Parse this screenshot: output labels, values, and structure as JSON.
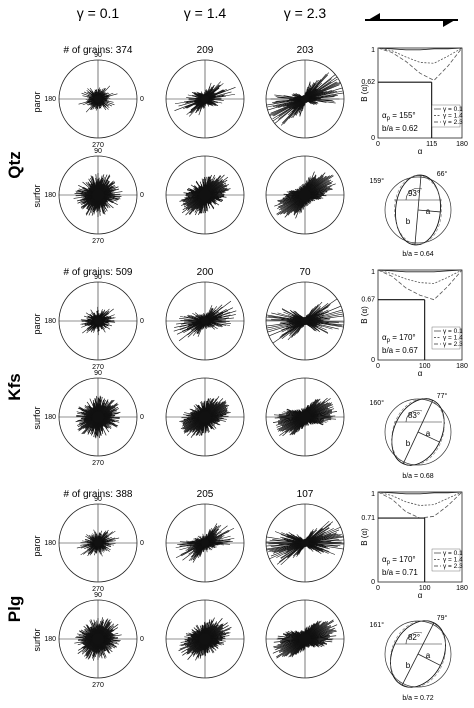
{
  "header": {
    "gammas": [
      "γ = 0.1",
      "γ = 1.4",
      "γ = 2.3"
    ],
    "shear_icon": "dextral-shear-icon"
  },
  "angle_labels": {
    "top": "90",
    "left": "180",
    "right": "0",
    "bottom": "270"
  },
  "row_labels": {
    "paror": "paror",
    "surfor": "surfor"
  },
  "legend": [
    "γ = 0.1",
    "γ = 1.4",
    "γ = 2.3"
  ],
  "axis": {
    "ylabel": "B (α)",
    "xlabel": "α",
    "ytick_top": "1",
    "ytick_bottom": "0",
    "xtick_left": "0",
    "xtick_right": "180"
  },
  "minerals": [
    {
      "name": "Qtz",
      "grain_prefix": "# of grains: ",
      "counts": [
        "374",
        "209",
        "203"
      ],
      "rose_seed": 11,
      "rose_pref": [
        0.1,
        0.35,
        0.7
      ],
      "rose_angle": [
        15,
        20,
        25
      ],
      "chart_data": {
        "type": "line",
        "xlabel": "α",
        "ylabel": "B (α)",
        "xlim": [
          0,
          180
        ],
        "ylim": [
          0,
          1
        ],
        "series": [
          {
            "name": "γ = 0.1",
            "x": [
              0,
              30,
              60,
              90,
              120,
              150,
              180
            ],
            "values": [
              1.0,
              0.99,
              0.98,
              0.98,
              0.99,
              0.99,
              1.0
            ]
          },
          {
            "name": "γ = 1.4",
            "x": [
              0,
              30,
              60,
              90,
              120,
              150,
              180
            ],
            "values": [
              1.0,
              0.97,
              0.9,
              0.84,
              0.83,
              0.91,
              1.0
            ]
          },
          {
            "name": "γ = 2.3",
            "x": [
              0,
              30,
              60,
              90,
              120,
              150,
              180
            ],
            "values": [
              1.0,
              0.95,
              0.85,
              0.72,
              0.64,
              0.8,
              1.0
            ]
          }
        ],
        "b_value_label": "0.62",
        "b_value": 0.62,
        "alpha_marker_label": "115",
        "alpha_marker": 115
      },
      "alpha_text": "α",
      "alpha_sub": "p",
      "alpha_value": " = 155°",
      "ba_text": "b/a = 0.62",
      "ellipse": {
        "left_angle": "159°",
        "top_angle": "66°",
        "center_angle": "93°",
        "a": "a",
        "b": "b",
        "ratio": "b/a = 0.64",
        "tilt": -30,
        "ratio_value": 0.64
      }
    },
    {
      "name": "Kfs",
      "grain_prefix": "# of grains: ",
      "counts": [
        "509",
        "200",
        "70"
      ],
      "rose_seed": 23,
      "rose_pref": [
        0.12,
        0.4,
        0.75
      ],
      "rose_angle": [
        12,
        18,
        8
      ],
      "chart_data": {
        "type": "line",
        "xlabel": "α",
        "ylabel": "B (α)",
        "xlim": [
          0,
          180
        ],
        "ylim": [
          0,
          1
        ],
        "series": [
          {
            "name": "γ = 0.1",
            "x": [
              0,
              30,
              60,
              90,
              120,
              150,
              180
            ],
            "values": [
              1.0,
              0.99,
              0.98,
              0.98,
              0.98,
              0.99,
              1.0
            ]
          },
          {
            "name": "γ = 1.4",
            "x": [
              0,
              30,
              60,
              90,
              120,
              150,
              180
            ],
            "values": [
              1.0,
              0.96,
              0.9,
              0.86,
              0.85,
              0.92,
              1.0
            ]
          },
          {
            "name": "γ = 2.3",
            "x": [
              0,
              30,
              60,
              90,
              120,
              150,
              180
            ],
            "values": [
              1.0,
              0.93,
              0.8,
              0.72,
              0.67,
              0.82,
              1.0
            ]
          }
        ],
        "b_value_label": "0.67",
        "b_value": 0.67,
        "alpha_marker_label": "100",
        "alpha_marker": 100
      },
      "alpha_text": "α",
      "alpha_sub": "p",
      "alpha_value": " = 170°",
      "ba_text": "b/a = 0.67",
      "ellipse": {
        "left_angle": "160°",
        "top_angle": "77°",
        "center_angle": "83°",
        "a": "a",
        "b": "b",
        "ratio": "b/a = 0.68",
        "tilt": -10,
        "ratio_value": 0.68
      }
    },
    {
      "name": "Plg",
      "grain_prefix": "# of grains: ",
      "counts": [
        "388",
        "205",
        "107"
      ],
      "rose_seed": 37,
      "rose_pref": [
        0.12,
        0.38,
        0.72
      ],
      "rose_angle": [
        20,
        22,
        10
      ],
      "chart_data": {
        "type": "line",
        "xlabel": "α",
        "ylabel": "B (α)",
        "xlim": [
          0,
          180
        ],
        "ylim": [
          0,
          1
        ],
        "series": [
          {
            "name": "γ = 0.1",
            "x": [
              0,
              30,
              60,
              90,
              120,
              150,
              180
            ],
            "values": [
              1.0,
              0.99,
              0.98,
              0.98,
              0.99,
              0.99,
              1.0
            ]
          },
          {
            "name": "γ = 1.4",
            "x": [
              0,
              30,
              60,
              90,
              120,
              150,
              180
            ],
            "values": [
              1.0,
              0.96,
              0.89,
              0.85,
              0.86,
              0.93,
              1.0
            ]
          },
          {
            "name": "γ = 2.3",
            "x": [
              0,
              30,
              60,
              90,
              120,
              150,
              180
            ],
            "values": [
              1.0,
              0.92,
              0.78,
              0.71,
              0.73,
              0.85,
              1.0
            ]
          }
        ],
        "b_value_label": "0.71",
        "b_value": 0.71,
        "alpha_marker_label": "100",
        "alpha_marker": 100
      },
      "alpha_text": "α",
      "alpha_sub": "p",
      "alpha_value": " = 170°",
      "ba_text": "b/a = 0.71",
      "ellipse": {
        "left_angle": "161°",
        "top_angle": "79°",
        "center_angle": "82°",
        "a": "a",
        "b": "b",
        "ratio": "b/a = 0.72",
        "tilt": -8,
        "ratio_value": 0.72
      }
    }
  ]
}
